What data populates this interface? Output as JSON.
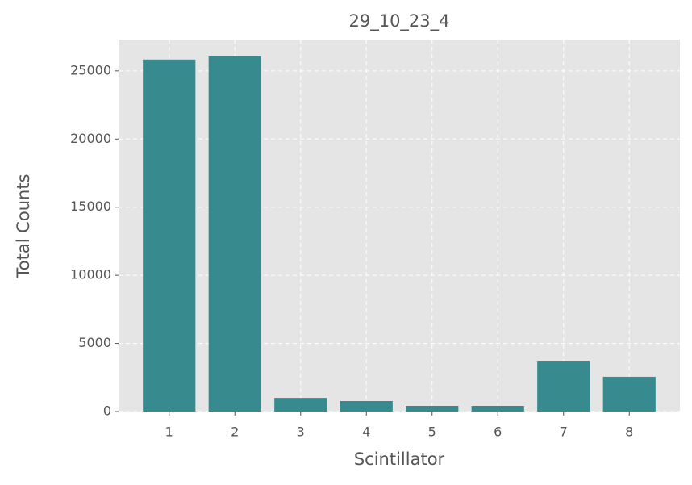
{
  "chart_data": {
    "type": "bar",
    "title": "29_10_23_4",
    "xlabel": "Scintillator",
    "ylabel": "Total Counts",
    "x": [
      1,
      2,
      3,
      4,
      5,
      6,
      7,
      8
    ],
    "values": [
      25830,
      26070,
      1000,
      770,
      415,
      415,
      3730,
      2550
    ],
    "color": "#378b8f",
    "xlim": [
      0.23,
      8.77
    ],
    "xticks": [
      1,
      2,
      3,
      4,
      5,
      6,
      7,
      8
    ],
    "ylim": [
      0,
      27300
    ],
    "yticks": [
      0,
      5000,
      10000,
      15000,
      20000,
      25000
    ],
    "bar_width": 0.8,
    "grid": true
  }
}
